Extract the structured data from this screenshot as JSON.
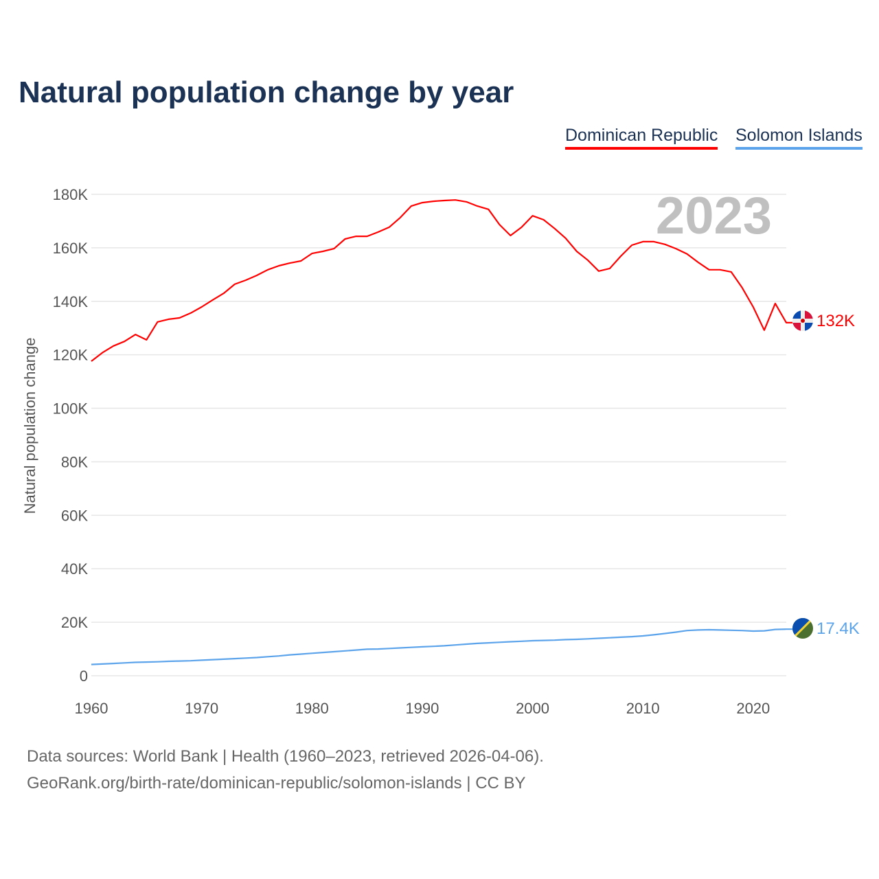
{
  "title": "Natural population change by year",
  "legend": [
    {
      "label": "Dominican Republic",
      "color": "#ff0000"
    },
    {
      "label": "Solomon Islands",
      "color": "#5ba3ea"
    }
  ],
  "year_watermark": "2023",
  "end_labels": {
    "dominican_republic": "132K",
    "solomon_islands": "17.4K"
  },
  "sources_line1": "Data sources: World Bank | Health (1960–2023, retrieved 2026-04-06).",
  "sources_line2": "GeoRank.org/birth-rate/dominican-republic/solomon-islands | CC BY",
  "chart_data": {
    "type": "line",
    "title": "Natural population change by year",
    "xlabel": "",
    "ylabel": "Natural population change",
    "xlim": [
      1960,
      2023
    ],
    "ylim": [
      0,
      180000
    ],
    "x_ticks": [
      "1960",
      "1970",
      "1980",
      "1990",
      "2000",
      "2010",
      "2020"
    ],
    "y_ticks": [
      {
        "v": 0,
        "l": "0"
      },
      {
        "v": 20000,
        "l": "20K"
      },
      {
        "v": 40000,
        "l": "40K"
      },
      {
        "v": 60000,
        "l": "60K"
      },
      {
        "v": 80000,
        "l": "80K"
      },
      {
        "v": 100000,
        "l": "100K"
      },
      {
        "v": 120000,
        "l": "120K"
      },
      {
        "v": 140000,
        "l": "140K"
      },
      {
        "v": 160000,
        "l": "160K"
      },
      {
        "v": 180000,
        "l": "180K"
      }
    ],
    "grid": true,
    "legend_position": "top-right",
    "x_start": 1960,
    "series": [
      {
        "name": "Dominican Republic",
        "color": "#ff0000",
        "values": [
          117600,
          120800,
          123300,
          125000,
          127600,
          125600,
          132300,
          133300,
          133800,
          135600,
          137900,
          140500,
          143000,
          146400,
          147900,
          149700,
          151800,
          153300,
          154300,
          155100,
          157900,
          158700,
          159700,
          163300,
          164300,
          164300,
          165900,
          167700,
          171300,
          175600,
          176900,
          177400,
          177700,
          177900,
          177200,
          175600,
          174400,
          168700,
          164600,
          167700,
          172000,
          170500,
          167200,
          163600,
          158700,
          155400,
          151300,
          152300,
          156900,
          161000,
          162300,
          162300,
          161300,
          159700,
          157700,
          154600,
          151800,
          151800,
          151000,
          145100,
          137900,
          129200,
          139200,
          132000
        ]
      },
      {
        "name": "Solomon Islands",
        "color": "#5ba3ea",
        "values": [
          4200,
          4400,
          4600,
          4800,
          5000,
          5100,
          5200,
          5400,
          5500,
          5600,
          5800,
          6000,
          6200,
          6400,
          6600,
          6800,
          7100,
          7400,
          7800,
          8100,
          8400,
          8700,
          9000,
          9300,
          9600,
          9900,
          10000,
          10200,
          10400,
          10600,
          10800,
          11000,
          11200,
          11500,
          11800,
          12100,
          12300,
          12500,
          12700,
          12900,
          13100,
          13200,
          13300,
          13500,
          13600,
          13800,
          14000,
          14200,
          14400,
          14600,
          14900,
          15300,
          15800,
          16300,
          16900,
          17100,
          17200,
          17100,
          17000,
          16900,
          16700,
          16800,
          17300,
          17400
        ]
      }
    ]
  }
}
